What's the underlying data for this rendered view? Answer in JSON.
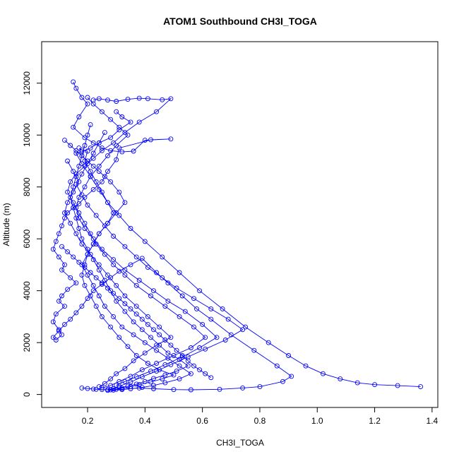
{
  "chart_data": {
    "type": "line",
    "title": "ATOM1 Southbound CH3I_TOGA",
    "xlabel": "CH3I_TOGA",
    "ylabel": "Altitude (m)",
    "xlim": [
      0.04,
      1.42
    ],
    "ylim": [
      -500,
      13600
    ],
    "xticks": [
      0.2,
      0.4,
      0.6,
      0.8,
      1.0,
      1.2,
      1.4
    ],
    "xtick_labels": [
      "0.2",
      "0.4",
      "0.6",
      "0.8",
      "1.0",
      "1.2",
      "1.4"
    ],
    "yticks": [
      0,
      2000,
      4000,
      6000,
      8000,
      10000,
      12000
    ],
    "ytick_labels": [
      "0",
      "2000",
      "4000",
      "6000",
      "8000",
      "10000",
      "12000"
    ],
    "grid": false,
    "legend": "none",
    "marker": "open-circle",
    "series_color": "#0000ff",
    "series": [
      {
        "x": [
          0.15,
          0.16,
          0.18,
          0.2,
          0.17,
          0.15,
          0.19,
          0.22,
          0.25,
          0.28,
          0.32,
          0.36,
          0.4,
          0.49,
          0.42,
          0.31,
          0.3,
          0.27,
          0.25,
          0.22,
          0.19,
          0.17,
          0.15,
          0.13,
          0.12,
          0.11,
          0.1,
          0.09,
          0.08,
          0.1,
          0.12,
          0.11,
          0.14,
          0.16,
          0.13,
          0.11,
          0.1,
          0.12,
          0.09,
          0.08,
          0.1,
          0.11,
          0.09,
          0.08,
          0.1,
          0.12,
          0.14,
          0.16,
          0.18,
          0.2,
          0.22,
          0.25,
          0.28,
          0.31,
          0.35,
          0.39,
          0.44,
          0.48,
          0.53,
          0.58,
          0.63,
          0.7,
          0.78,
          0.86,
          0.91,
          0.88,
          0.8,
          0.74,
          0.66,
          0.56,
          0.5,
          0.43,
          0.38,
          0.32,
          0.28,
          0.25,
          0.22,
          0.2,
          0.18
        ],
        "y": [
          12050,
          11800,
          11450,
          11200,
          10700,
          10300,
          9900,
          9700,
          9500,
          9400,
          9350,
          9380,
          9800,
          9850,
          9820,
          9500,
          9050,
          8600,
          8200,
          7900,
          7600,
          7350,
          7200,
          7000,
          6800,
          6500,
          6200,
          5900,
          5600,
          5300,
          5000,
          4800,
          4500,
          4300,
          4050,
          3800,
          3600,
          3400,
          3100,
          2800,
          2500,
          2300,
          2100,
          2200,
          2450,
          2700,
          2900,
          3150,
          3400,
          3700,
          4000,
          4250,
          4500,
          4750,
          5000,
          5250,
          4700,
          4300,
          3800,
          3300,
          2900,
          2300,
          1700,
          1100,
          700,
          500,
          300,
          250,
          200,
          180,
          190,
          220,
          250,
          200,
          180,
          190,
          210,
          230,
          250
        ]
      },
      {
        "x": [
          0.22,
          0.24,
          0.27,
          0.3,
          0.34,
          0.38,
          0.41,
          0.46,
          0.49,
          0.44,
          0.38,
          0.33,
          0.29,
          0.25,
          0.22,
          0.19,
          0.16,
          0.14,
          0.13,
          0.15,
          0.17,
          0.19,
          0.21,
          0.23,
          0.26,
          0.29,
          0.33,
          0.37,
          0.42,
          0.47,
          0.52,
          0.57,
          0.61,
          0.56,
          0.5,
          0.44,
          0.39,
          0.35,
          0.31,
          0.28,
          0.25,
          0.23
        ],
        "y": [
          11350,
          11400,
          11350,
          11300,
          11380,
          11420,
          11400,
          11360,
          11400,
          10900,
          10500,
          10100,
          9700,
          9400,
          9100,
          8800,
          8500,
          8200,
          7800,
          7400,
          7000,
          6600,
          6200,
          5800,
          5400,
          5000,
          4600,
          4200,
          3800,
          3400,
          3000,
          2600,
          2200,
          1800,
          1500,
          1200,
          950,
          700,
          500,
          350,
          250,
          200
        ]
      },
      {
        "x": [
          0.3,
          0.32,
          0.35,
          0.31,
          0.28,
          0.24,
          0.21,
          0.18,
          0.16,
          0.18,
          0.21,
          0.24,
          0.27,
          0.31,
          0.35,
          0.4,
          0.46,
          0.52,
          0.59,
          0.67,
          0.75,
          0.83,
          0.9,
          0.96,
          1.02,
          1.08,
          1.14,
          1.2,
          1.28,
          1.36
        ],
        "y": [
          10900,
          10700,
          10500,
          10200,
          9900,
          9700,
          9500,
          9350,
          9300,
          8900,
          8400,
          7900,
          7400,
          6900,
          6400,
          5900,
          5300,
          4700,
          4000,
          3300,
          2600,
          2000,
          1500,
          1100,
          800,
          600,
          450,
          380,
          340,
          300
        ]
      },
      {
        "x": [
          0.17,
          0.18,
          0.2,
          0.19,
          0.21,
          0.23,
          0.25,
          0.27,
          0.29,
          0.27,
          0.24,
          0.22,
          0.2,
          0.18,
          0.2,
          0.22,
          0.24,
          0.26,
          0.29,
          0.32,
          0.36,
          0.4,
          0.44,
          0.48,
          0.52,
          0.56,
          0.52,
          0.47,
          0.43,
          0.39,
          0.35,
          0.32,
          0.29,
          0.27
        ],
        "y": [
          9500,
          9420,
          9380,
          9000,
          8600,
          8200,
          7800,
          7400,
          7000,
          6600,
          6200,
          5800,
          5400,
          5000,
          4600,
          4200,
          3800,
          3400,
          3000,
          2600,
          2300,
          2000,
          1700,
          1400,
          1100,
          800,
          600,
          450,
          350,
          270,
          220,
          190,
          170,
          160
        ]
      },
      {
        "x": [
          0.21,
          0.2,
          0.19,
          0.18,
          0.17,
          0.16,
          0.15,
          0.14,
          0.15,
          0.16,
          0.17,
          0.18,
          0.2,
          0.22,
          0.24,
          0.26,
          0.28,
          0.3,
          0.33,
          0.36,
          0.39,
          0.42,
          0.45,
          0.48,
          0.52,
          0.55,
          0.51,
          0.47,
          0.43,
          0.4,
          0.37,
          0.34,
          0.31,
          0.29,
          0.27
        ],
        "y": [
          10400,
          10000,
          9600,
          9200,
          8800,
          8400,
          8000,
          7600,
          7200,
          6800,
          6400,
          6000,
          5600,
          5200,
          4800,
          4400,
          4000,
          3600,
          3200,
          2800,
          2500,
          2200,
          1900,
          1600,
          1350,
          1100,
          900,
          750,
          620,
          500,
          400,
          320,
          260,
          220,
          190
        ]
      },
      {
        "x": [
          0.12,
          0.14,
          0.16,
          0.18,
          0.2,
          0.22,
          0.24,
          0.26,
          0.28,
          0.31,
          0.33,
          0.3,
          0.27,
          0.24,
          0.22,
          0.2,
          0.19,
          0.18,
          0.19,
          0.21,
          0.23,
          0.25,
          0.28,
          0.31,
          0.34,
          0.37,
          0.41,
          0.45,
          0.5,
          0.46,
          0.42,
          0.38,
          0.35,
          0.32,
          0.3
        ],
        "y": [
          9800,
          9600,
          9400,
          9200,
          9000,
          8800,
          8600,
          8400,
          8200,
          7800,
          7400,
          7000,
          6600,
          6200,
          5800,
          5400,
          5000,
          4600,
          4200,
          3800,
          3400,
          3000,
          2600,
          2200,
          1850,
          1500,
          1200,
          950,
          750,
          600,
          480,
          380,
          300,
          240,
          200
        ]
      },
      {
        "x": [
          0.2,
          0.22,
          0.25,
          0.28,
          0.31,
          0.34,
          0.3,
          0.27,
          0.24,
          0.21,
          0.19,
          0.17,
          0.16,
          0.17,
          0.19,
          0.22,
          0.25,
          0.29,
          0.33,
          0.38,
          0.43,
          0.48,
          0.54,
          0.6,
          0.65,
          0.59,
          0.53,
          0.47,
          0.42,
          0.37,
          0.33,
          0.3
        ],
        "y": [
          11450,
          11200,
          10900,
          10600,
          10300,
          10000,
          9600,
          9200,
          8800,
          8400,
          8000,
          7600,
          7200,
          6800,
          6400,
          6000,
          5600,
          5200,
          4800,
          4400,
          4000,
          3600,
          3200,
          2700,
          2200,
          1800,
          1450,
          1150,
          900,
          680,
          500,
          360
        ]
      },
      {
        "x": [
          0.13,
          0.15,
          0.17,
          0.15,
          0.13,
          0.12,
          0.14,
          0.16,
          0.18,
          0.21,
          0.24,
          0.27,
          0.3,
          0.33,
          0.37,
          0.41,
          0.45,
          0.49,
          0.44,
          0.4,
          0.36,
          0.33,
          0.3,
          0.28,
          0.26,
          0.24
        ],
        "y": [
          9000,
          8600,
          8200,
          7800,
          7400,
          7000,
          6600,
          6200,
          5800,
          5400,
          5000,
          4600,
          4200,
          3800,
          3400,
          3000,
          2600,
          2200,
          1900,
          1600,
          1300,
          1000,
          800,
          600,
          420,
          300
        ]
      },
      {
        "x": [
          0.26,
          0.24,
          0.22,
          0.2,
          0.18,
          0.16,
          0.18,
          0.2,
          0.23,
          0.26,
          0.29,
          0.33,
          0.37,
          0.41,
          0.46,
          0.51,
          0.57,
          0.63,
          0.69,
          0.74,
          0.68,
          0.61,
          0.55,
          0.49,
          0.44,
          0.39,
          0.35,
          0.31
        ],
        "y": [
          10100,
          9700,
          9300,
          8900,
          8500,
          8100,
          7700,
          7300,
          6900,
          6500,
          6100,
          5700,
          5300,
          4900,
          4500,
          4100,
          3700,
          3300,
          2900,
          2500,
          2100,
          1750,
          1450,
          1150,
          900,
          680,
          480,
          320
        ]
      },
      {
        "x": [
          0.11,
          0.13,
          0.15,
          0.17,
          0.19,
          0.21,
          0.23,
          0.25,
          0.27,
          0.29,
          0.31,
          0.33,
          0.35,
          0.37,
          0.39,
          0.41,
          0.43,
          0.45,
          0.47,
          0.49,
          0.51,
          0.53,
          0.55,
          0.57,
          0.59,
          0.61,
          0.63
        ],
        "y": [
          5700,
          5500,
          5300,
          5100,
          4900,
          4700,
          4500,
          4300,
          4100,
          3900,
          3700,
          3500,
          3300,
          3100,
          2900,
          2700,
          2500,
          2300,
          2100,
          1900,
          1700,
          1500,
          1300,
          1100,
          950,
          800,
          650
        ]
      }
    ]
  }
}
